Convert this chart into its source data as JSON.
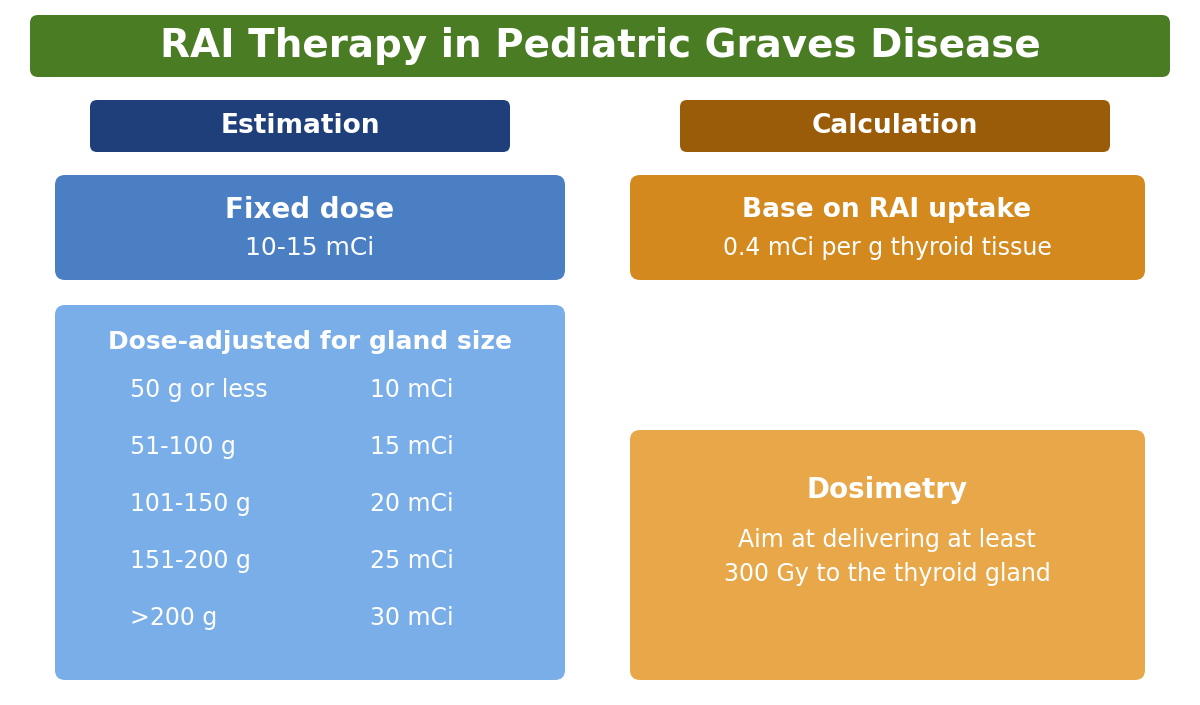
{
  "title": "RAI Therapy in Pediatric Graves Disease",
  "title_bg": "#4a7c23",
  "title_color": "#ffffff",
  "bg_color": "#ffffff",
  "estimation_label": "Estimation",
  "estimation_label_bg": "#1f3f7a",
  "calculation_label": "Calculation",
  "calculation_label_bg": "#9b5c0a",
  "fixed_dose_title": "Fixed dose",
  "fixed_dose_value": "10-15 mCi",
  "fixed_dose_bg": "#4a7fc4",
  "base_uptake_title": "Base on RAI uptake",
  "base_uptake_value": "0.4 mCi per g thyroid tissue",
  "base_uptake_bg": "#d4891e",
  "dose_adjusted_title": "Dose-adjusted for gland size",
  "dose_adjusted_rows": [
    [
      "50 g or less",
      "10 mCi"
    ],
    [
      "51-100 g",
      "15 mCi"
    ],
    [
      "101-150 g",
      "20 mCi"
    ],
    [
      "151-200 g",
      "25 mCi"
    ],
    [
      ">200 g",
      "30 mCi"
    ]
  ],
  "dose_adjusted_bg": "#7aaee8",
  "dosimetry_title": "Dosimetry",
  "dosimetry_line1": "Aim at delivering at least",
  "dosimetry_line2": "300 Gy to the thyroid gland",
  "dosimetry_bg": "#e8a84a",
  "text_white": "#ffffff",
  "fig_w": 12.0,
  "fig_h": 7.05
}
